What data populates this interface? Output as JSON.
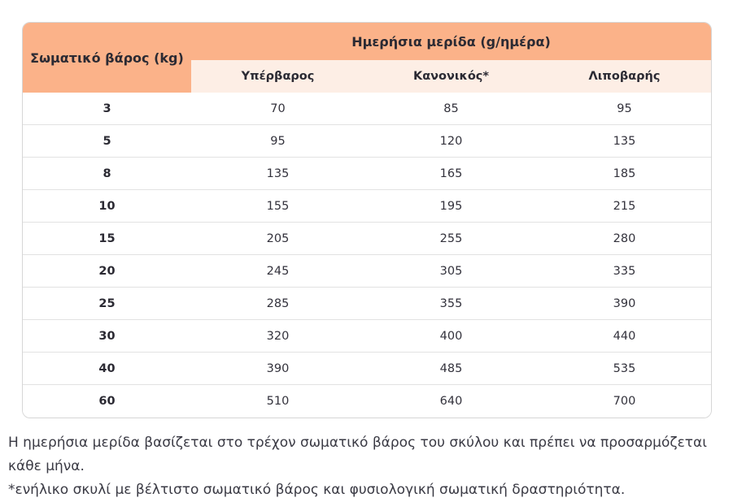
{
  "table": {
    "title": "Ημερήσια μερίδα (g/ημέρα)",
    "weight_header": "Σωματικό βάρος (kg)",
    "columns": [
      "Υπέρβαρος",
      "Κανονικός*",
      "Λιποβαρής"
    ],
    "rows": [
      {
        "weight": "3",
        "values": [
          "70",
          "85",
          "95"
        ]
      },
      {
        "weight": "5",
        "values": [
          "95",
          "120",
          "135"
        ]
      },
      {
        "weight": "8",
        "values": [
          "135",
          "165",
          "185"
        ]
      },
      {
        "weight": "10",
        "values": [
          "155",
          "195",
          "215"
        ]
      },
      {
        "weight": "15",
        "values": [
          "205",
          "255",
          "280"
        ]
      },
      {
        "weight": "20",
        "values": [
          "245",
          "305",
          "335"
        ]
      },
      {
        "weight": "25",
        "values": [
          "285",
          "355",
          "390"
        ]
      },
      {
        "weight": "30",
        "values": [
          "320",
          "400",
          "440"
        ]
      },
      {
        "weight": "40",
        "values": [
          "390",
          "485",
          "535"
        ]
      },
      {
        "weight": "60",
        "values": [
          "510",
          "640",
          "700"
        ]
      }
    ]
  },
  "footnotes": {
    "line1": "Η ημερήσια μερίδα βασίζεται στο τρέχον σωματικό βάρος του σκύλου και πρέπει να προσαρμόζεται κάθε μήνα.",
    "line2": "*ενήλικο σκυλί με βέλτιστο σωματικό βάρος και φυσιολογική σωματική δραστηριότητα."
  },
  "colors": {
    "header_orange": "#FBB289",
    "subheader_peach": "#FDEEE5",
    "border_gray": "#D6D6D6",
    "text_dark": "#2B2A33"
  }
}
